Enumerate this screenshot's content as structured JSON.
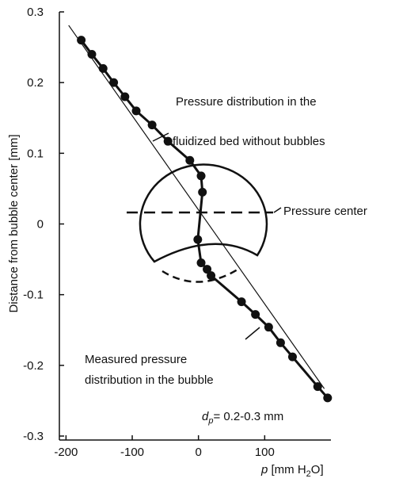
{
  "chart_data": {
    "type": "line",
    "xlabel": {
      "italic": "p",
      "a": " [mm H",
      "sub": "2",
      "b": "O]"
    },
    "ylabel": "Distance from bubble center [mm]",
    "xlim": [
      -210,
      200
    ],
    "ylim": [
      -0.3,
      0.3
    ],
    "xticks": [
      -200,
      -100,
      0,
      100
    ],
    "yticks": [
      0.3,
      0.2,
      0.1,
      0,
      -0.1,
      -0.2,
      -0.3
    ],
    "grid": false,
    "series": [
      {
        "color": "#111111",
        "markers": true,
        "x": [
          -177,
          -161,
          -144,
          -128,
          -111,
          -94,
          -70,
          -46,
          -13,
          4,
          6,
          -1,
          4,
          13,
          19,
          65,
          86,
          106,
          124,
          142,
          180,
          195
        ],
        "values": [
          0.26,
          0.24,
          0.22,
          0.2,
          0.18,
          0.16,
          0.14,
          0.117,
          0.09,
          0.068,
          0.045,
          -0.022,
          -0.055,
          -0.064,
          -0.073,
          -0.11,
          -0.128,
          -0.146,
          -0.168,
          -0.188,
          -0.23,
          -0.246
        ]
      },
      {
        "color": "#111111",
        "markers": false,
        "x": [
          -196,
          190
        ],
        "values": [
          0.281,
          -0.233
        ]
      }
    ],
    "annotations": {
      "upper": [
        "Pressure distribution in the",
        "fluidized bed without bubbles"
      ],
      "center": "Pressure center",
      "lower": [
        "Measured pressure",
        "distribution in the bubble"
      ],
      "dp": {
        "d": "d",
        "sub": "p",
        "rest": "= 0.2-0.3 mm"
      }
    }
  }
}
